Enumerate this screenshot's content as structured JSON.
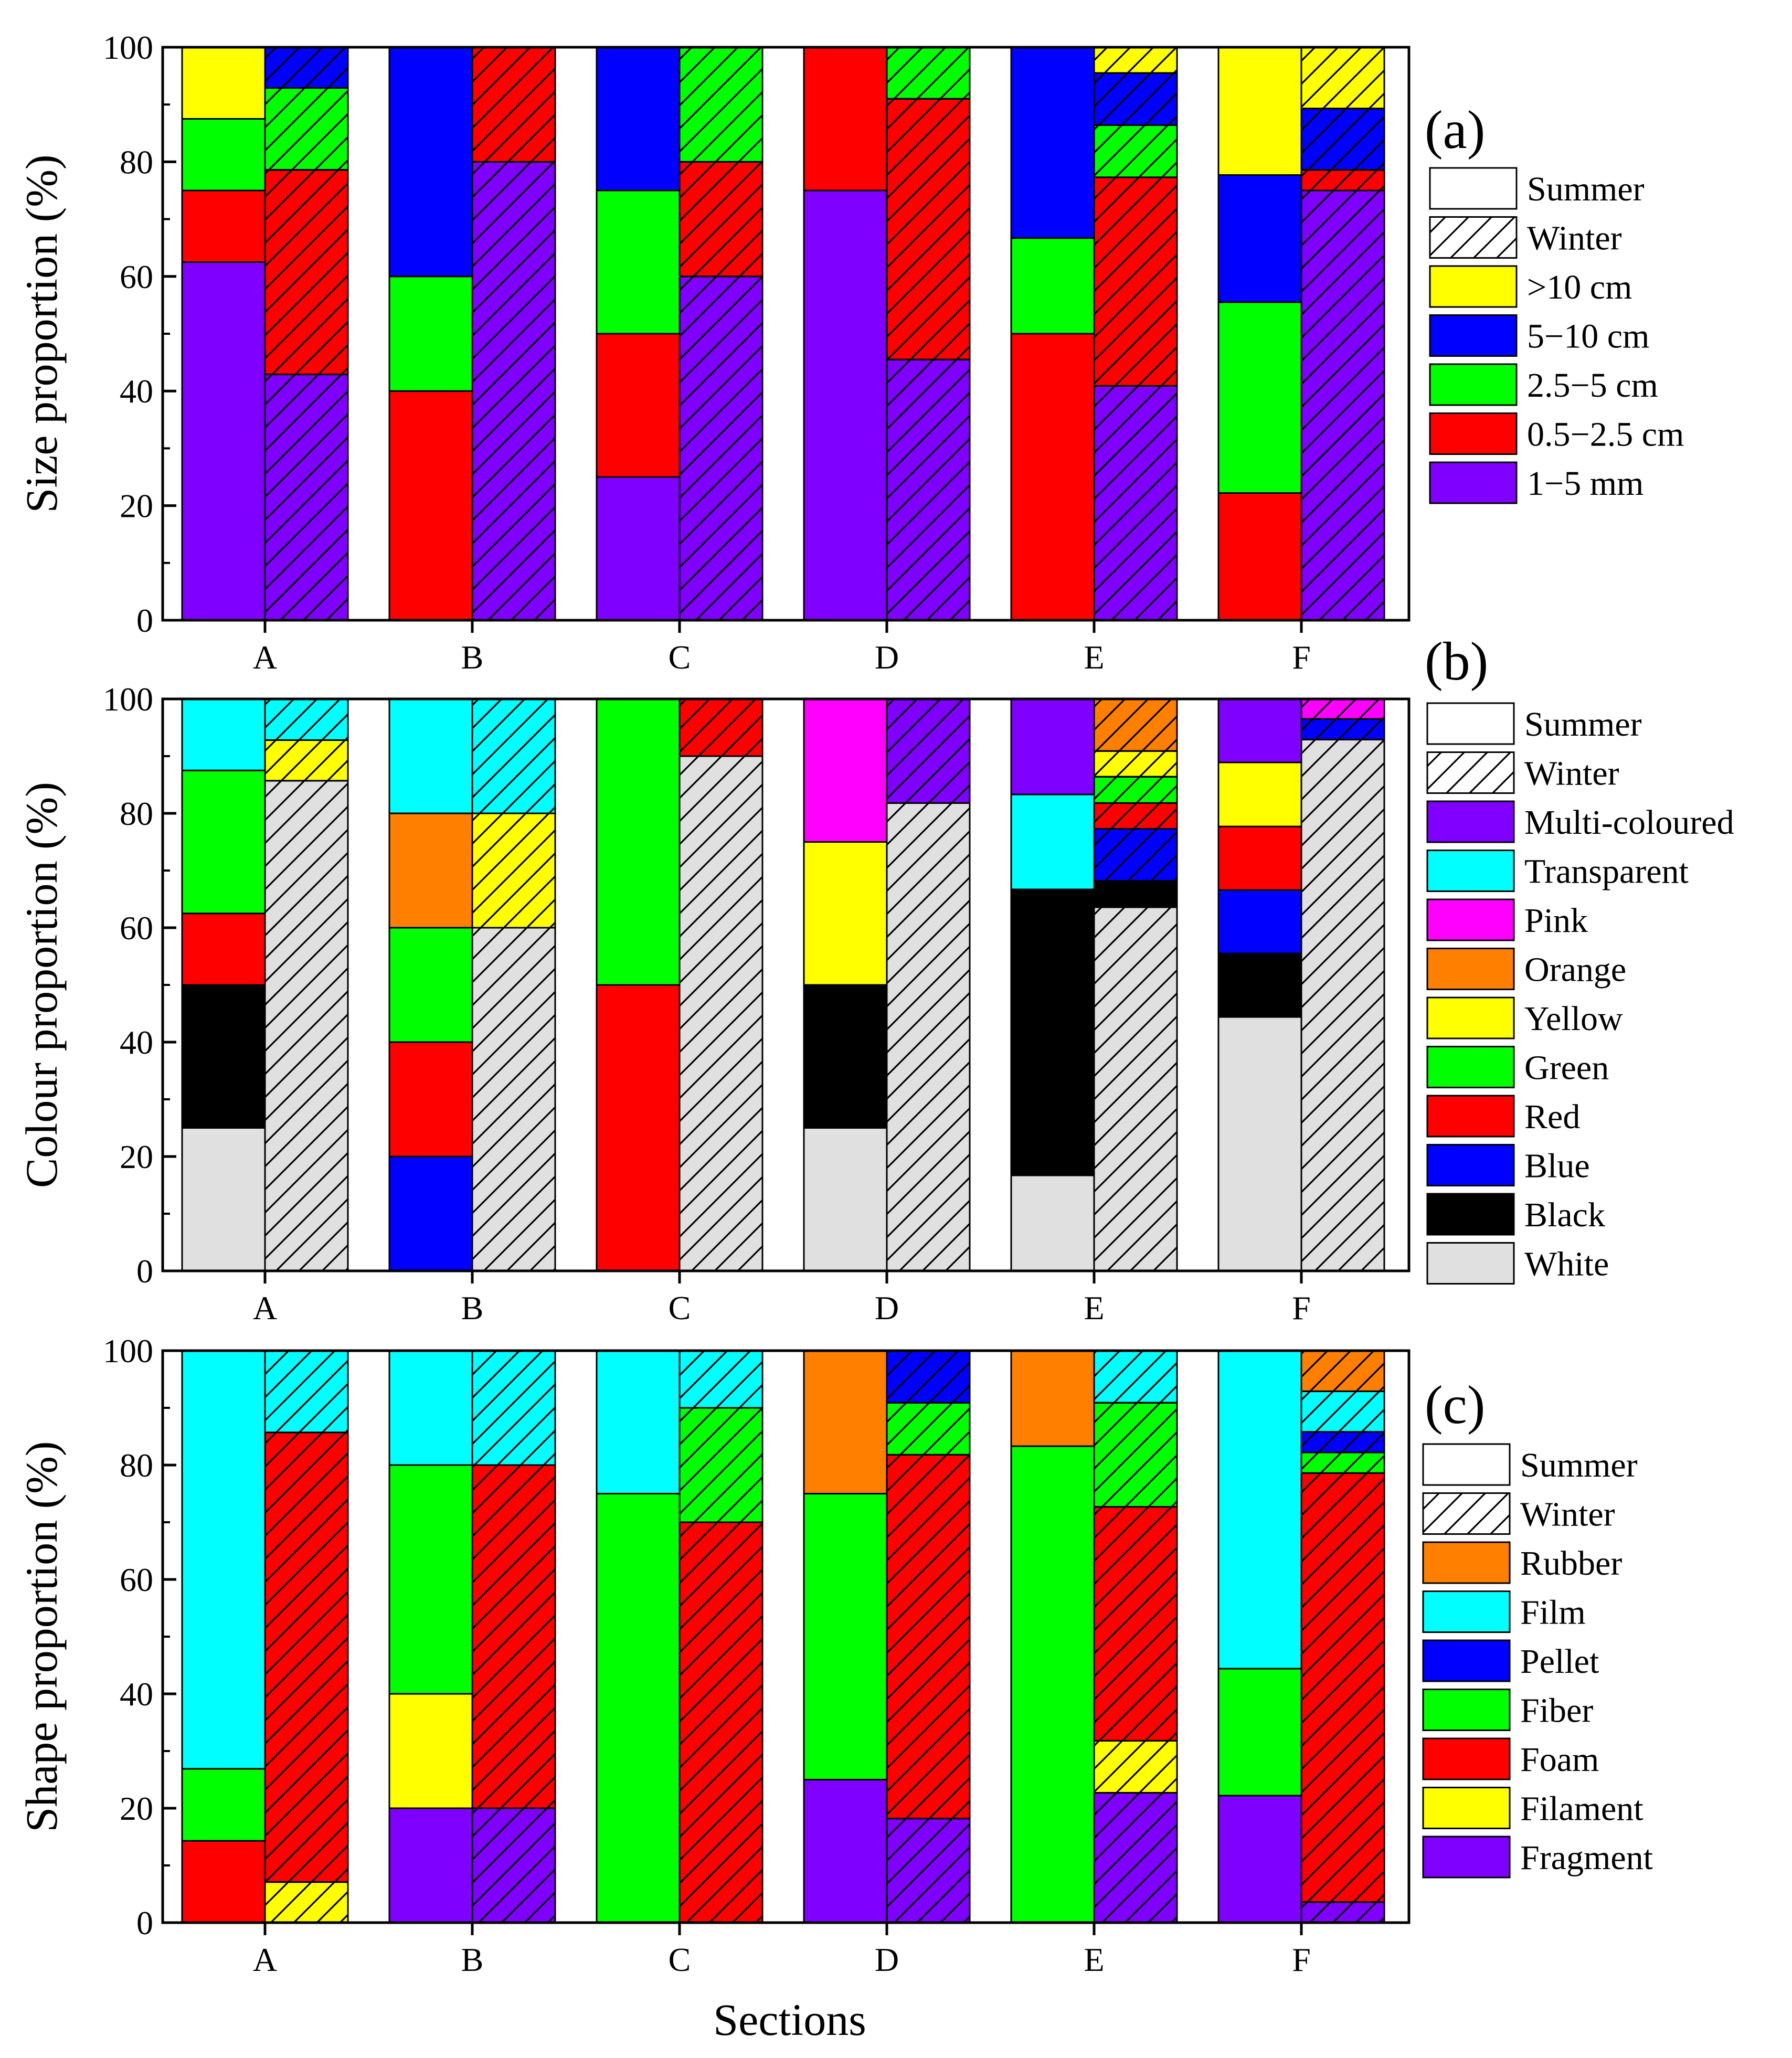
{
  "xlabel": "Sections",
  "seasons": [
    "Summer",
    "Winter"
  ],
  "chart_data": [
    {
      "type": "bar",
      "stacked": true,
      "panel": "(a)",
      "title": "",
      "xlabel": "Sections",
      "ylabel": "Size proportion (%)",
      "ylim": [
        0,
        100
      ],
      "yticks": [
        "0",
        "20",
        "40",
        "60",
        "80",
        "100"
      ],
      "categories": [
        "A",
        "B",
        "C",
        "D",
        "E",
        "F"
      ],
      "legend": {
        "pattern_items": [
          "Summer",
          "Winter"
        ],
        "items": [
          {
            "name": ">10 cm",
            "color": "#ffff00"
          },
          {
            "name": "5−10 cm",
            "color": "#0000ff"
          },
          {
            "name": "2.5−5 cm",
            "color": "#00ff00"
          },
          {
            "name": "0.5−2.5 cm",
            "color": "#ff0000"
          },
          {
            "name": "1−5 mm",
            "color": "#8000ff"
          }
        ]
      },
      "series": [
        {
          "season": "Summer",
          "section": "A",
          "segments": [
            {
              "name": "1−5 mm",
              "value": 62.5
            },
            {
              "name": "0.5−2.5 cm",
              "value": 12.5
            },
            {
              "name": "2.5−5 cm",
              "value": 12.5
            },
            {
              "name": ">10 cm",
              "value": 12.5
            }
          ]
        },
        {
          "season": "Winter",
          "section": "A",
          "segments": [
            {
              "name": "1−5 mm",
              "value": 42.9
            },
            {
              "name": "0.5−2.5 cm",
              "value": 35.7
            },
            {
              "name": "2.5−5 cm",
              "value": 14.3
            },
            {
              "name": "5−10 cm",
              "value": 7.1
            }
          ]
        },
        {
          "season": "Summer",
          "section": "B",
          "segments": [
            {
              "name": "0.5−2.5 cm",
              "value": 40
            },
            {
              "name": "2.5−5 cm",
              "value": 20
            },
            {
              "name": "5−10 cm",
              "value": 40
            }
          ]
        },
        {
          "season": "Winter",
          "section": "B",
          "segments": [
            {
              "name": "1−5 mm",
              "value": 80
            },
            {
              "name": "0.5−2.5 cm",
              "value": 20
            }
          ]
        },
        {
          "season": "Summer",
          "section": "C",
          "segments": [
            {
              "name": "1−5 mm",
              "value": 25
            },
            {
              "name": "0.5−2.5 cm",
              "value": 25
            },
            {
              "name": "2.5−5 cm",
              "value": 25
            },
            {
              "name": "5−10 cm",
              "value": 25
            }
          ]
        },
        {
          "season": "Winter",
          "section": "C",
          "segments": [
            {
              "name": "1−5 mm",
              "value": 60
            },
            {
              "name": "0.5−2.5 cm",
              "value": 20
            },
            {
              "name": "2.5−5 cm",
              "value": 20
            }
          ]
        },
        {
          "season": "Summer",
          "section": "D",
          "segments": [
            {
              "name": "1−5 mm",
              "value": 75
            },
            {
              "name": "0.5−2.5 cm",
              "value": 25
            }
          ]
        },
        {
          "season": "Winter",
          "section": "D",
          "segments": [
            {
              "name": "1−5 mm",
              "value": 45.5
            },
            {
              "name": "0.5−2.5 cm",
              "value": 45.5
            },
            {
              "name": "2.5−5 cm",
              "value": 9
            }
          ]
        },
        {
          "season": "Summer",
          "section": "E",
          "segments": [
            {
              "name": "0.5−2.5 cm",
              "value": 50
            },
            {
              "name": "2.5−5 cm",
              "value": 16.7
            },
            {
              "name": "5−10 cm",
              "value": 33.3
            }
          ]
        },
        {
          "season": "Winter",
          "section": "E",
          "segments": [
            {
              "name": "1−5 mm",
              "value": 40.9
            },
            {
              "name": "0.5−2.5 cm",
              "value": 36.4
            },
            {
              "name": "2.5−5 cm",
              "value": 9.1
            },
            {
              "name": "5−10 cm",
              "value": 9.1
            },
            {
              "name": ">10 cm",
              "value": 4.5
            }
          ]
        },
        {
          "season": "Summer",
          "section": "F",
          "segments": [
            {
              "name": "0.5−2.5 cm",
              "value": 22.2
            },
            {
              "name": "2.5−5 cm",
              "value": 33.3
            },
            {
              "name": "5−10 cm",
              "value": 22.2
            },
            {
              "name": ">10 cm",
              "value": 22.3
            }
          ]
        },
        {
          "season": "Winter",
          "section": "F",
          "segments": [
            {
              "name": "1−5 mm",
              "value": 75
            },
            {
              "name": "0.5−2.5 cm",
              "value": 3.6
            },
            {
              "name": "5−10 cm",
              "value": 10.7
            },
            {
              "name": ">10 cm",
              "value": 10.7
            }
          ]
        }
      ]
    },
    {
      "type": "bar",
      "stacked": true,
      "panel": "(b)",
      "title": "",
      "xlabel": "Sections",
      "ylabel": "Colour proportion (%)",
      "ylim": [
        0,
        100
      ],
      "yticks": [
        "0",
        "20",
        "40",
        "60",
        "80",
        "100"
      ],
      "categories": [
        "A",
        "B",
        "C",
        "D",
        "E",
        "F"
      ],
      "legend": {
        "pattern_items": [
          "Summer",
          "Winter"
        ],
        "items": [
          {
            "name": "Multi-coloured",
            "color": "#8000ff"
          },
          {
            "name": "Transparent",
            "color": "#00ffff"
          },
          {
            "name": "Pink",
            "color": "#ff00ff"
          },
          {
            "name": "Orange",
            "color": "#ff8000"
          },
          {
            "name": "Yellow",
            "color": "#ffff00"
          },
          {
            "name": "Green",
            "color": "#00ff00"
          },
          {
            "name": "Red",
            "color": "#ff0000"
          },
          {
            "name": "Blue",
            "color": "#0000ff"
          },
          {
            "name": "Black",
            "color": "#000000"
          },
          {
            "name": "White",
            "color": "#e0e0e0"
          }
        ]
      },
      "series": [
        {
          "season": "Summer",
          "section": "A",
          "segments": [
            {
              "name": "White",
              "value": 25
            },
            {
              "name": "Black",
              "value": 25
            },
            {
              "name": "Red",
              "value": 12.5
            },
            {
              "name": "Green",
              "value": 25
            },
            {
              "name": "Transparent",
              "value": 12.5
            }
          ]
        },
        {
          "season": "Winter",
          "section": "A",
          "segments": [
            {
              "name": "White",
              "value": 85.7
            },
            {
              "name": "Yellow",
              "value": 7.1
            },
            {
              "name": "Transparent",
              "value": 7.2
            }
          ]
        },
        {
          "season": "Summer",
          "section": "B",
          "segments": [
            {
              "name": "Blue",
              "value": 20
            },
            {
              "name": "Red",
              "value": 20
            },
            {
              "name": "Green",
              "value": 20
            },
            {
              "name": "Orange",
              "value": 20
            },
            {
              "name": "Transparent",
              "value": 20
            }
          ]
        },
        {
          "season": "Winter",
          "section": "B",
          "segments": [
            {
              "name": "White",
              "value": 60
            },
            {
              "name": "Yellow",
              "value": 20
            },
            {
              "name": "Transparent",
              "value": 20
            }
          ]
        },
        {
          "season": "Summer",
          "section": "C",
          "segments": [
            {
              "name": "Red",
              "value": 50
            },
            {
              "name": "Green",
              "value": 50
            }
          ]
        },
        {
          "season": "Winter",
          "section": "C",
          "segments": [
            {
              "name": "White",
              "value": 90
            },
            {
              "name": "Red",
              "value": 10
            }
          ]
        },
        {
          "season": "Summer",
          "section": "D",
          "segments": [
            {
              "name": "White",
              "value": 25
            },
            {
              "name": "Black",
              "value": 25
            },
            {
              "name": "Yellow",
              "value": 25
            },
            {
              "name": "Pink",
              "value": 25
            }
          ]
        },
        {
          "season": "Winter",
          "section": "D",
          "segments": [
            {
              "name": "White",
              "value": 81.8
            },
            {
              "name": "Multi-coloured",
              "value": 18.2
            }
          ]
        },
        {
          "season": "Summer",
          "section": "E",
          "segments": [
            {
              "name": "White",
              "value": 16.7
            },
            {
              "name": "Black",
              "value": 50
            },
            {
              "name": "Transparent",
              "value": 16.6
            },
            {
              "name": "Multi-coloured",
              "value": 16.7
            }
          ]
        },
        {
          "season": "Winter",
          "section": "E",
          "segments": [
            {
              "name": "White",
              "value": 63.6
            },
            {
              "name": "Black",
              "value": 4.6
            },
            {
              "name": "Blue",
              "value": 9.1
            },
            {
              "name": "Red",
              "value": 4.5
            },
            {
              "name": "Green",
              "value": 4.6
            },
            {
              "name": "Yellow",
              "value": 4.5
            },
            {
              "name": "Orange",
              "value": 9.1
            }
          ]
        },
        {
          "season": "Summer",
          "section": "F",
          "segments": [
            {
              "name": "White",
              "value": 44.4
            },
            {
              "name": "Black",
              "value": 11.1
            },
            {
              "name": "Blue",
              "value": 11.1
            },
            {
              "name": "Red",
              "value": 11.1
            },
            {
              "name": "Yellow",
              "value": 11.2
            },
            {
              "name": "Multi-coloured",
              "value": 11.1
            }
          ]
        },
        {
          "season": "Winter",
          "section": "F",
          "segments": [
            {
              "name": "White",
              "value": 92.9
            },
            {
              "name": "Blue",
              "value": 3.6
            },
            {
              "name": "Pink",
              "value": 3.5
            }
          ]
        }
      ]
    },
    {
      "type": "bar",
      "stacked": true,
      "panel": "(c)",
      "title": "",
      "xlabel": "Sections",
      "ylabel": "Shape proportion (%)",
      "ylim": [
        0,
        100
      ],
      "yticks": [
        "0",
        "20",
        "40",
        "60",
        "80",
        "100"
      ],
      "categories": [
        "A",
        "B",
        "C",
        "D",
        "E",
        "F"
      ],
      "legend": {
        "pattern_items": [
          "Summer",
          "Winter"
        ],
        "items": [
          {
            "name": "Rubber",
            "color": "#ff8000"
          },
          {
            "name": "Film",
            "color": "#00ffff"
          },
          {
            "name": "Pellet",
            "color": "#0000ff"
          },
          {
            "name": "Fiber",
            "color": "#00ff00"
          },
          {
            "name": "Foam",
            "color": "#ff0000"
          },
          {
            "name": "Filament",
            "color": "#ffff00"
          },
          {
            "name": "Fragment",
            "color": "#8000ff"
          }
        ]
      },
      "series": [
        {
          "season": "Summer",
          "section": "A",
          "segments": [
            {
              "name": "Foam",
              "value": 14.3
            },
            {
              "name": "Fiber",
              "value": 12.6
            },
            {
              "name": "Film",
              "value": 73.1
            }
          ]
        },
        {
          "season": "Winter",
          "section": "A",
          "segments": [
            {
              "name": "Filament",
              "value": 7.1
            },
            {
              "name": "Foam",
              "value": 78.6
            },
            {
              "name": "Film",
              "value": 14.3
            }
          ]
        },
        {
          "season": "Summer",
          "section": "B",
          "segments": [
            {
              "name": "Fragment",
              "value": 20
            },
            {
              "name": "Filament",
              "value": 20
            },
            {
              "name": "Fiber",
              "value": 40
            },
            {
              "name": "Film",
              "value": 20
            }
          ]
        },
        {
          "season": "Winter",
          "section": "B",
          "segments": [
            {
              "name": "Fragment",
              "value": 20
            },
            {
              "name": "Foam",
              "value": 60
            },
            {
              "name": "Film",
              "value": 20
            }
          ]
        },
        {
          "season": "Summer",
          "section": "C",
          "segments": [
            {
              "name": "Fiber",
              "value": 75
            },
            {
              "name": "Film",
              "value": 25
            }
          ]
        },
        {
          "season": "Winter",
          "section": "C",
          "segments": [
            {
              "name": "Foam",
              "value": 70
            },
            {
              "name": "Fiber",
              "value": 20
            },
            {
              "name": "Film",
              "value": 10
            }
          ]
        },
        {
          "season": "Summer",
          "section": "D",
          "segments": [
            {
              "name": "Fragment",
              "value": 25
            },
            {
              "name": "Fiber",
              "value": 50
            },
            {
              "name": "Rubber",
              "value": 25
            }
          ]
        },
        {
          "season": "Winter",
          "section": "D",
          "segments": [
            {
              "name": "Fragment",
              "value": 18.2
            },
            {
              "name": "Foam",
              "value": 63.6
            },
            {
              "name": "Fiber",
              "value": 9.1
            },
            {
              "name": "Pellet",
              "value": 9.1
            }
          ]
        },
        {
          "season": "Summer",
          "section": "E",
          "segments": [
            {
              "name": "Fiber",
              "value": 83.3
            },
            {
              "name": "Rubber",
              "value": 16.7
            }
          ]
        },
        {
          "season": "Winter",
          "section": "E",
          "segments": [
            {
              "name": "Fragment",
              "value": 22.7
            },
            {
              "name": "Filament",
              "value": 9.1
            },
            {
              "name": "Foam",
              "value": 40.9
            },
            {
              "name": "Fiber",
              "value": 18.2
            },
            {
              "name": "Film",
              "value": 9.1
            }
          ]
        },
        {
          "season": "Summer",
          "section": "F",
          "segments": [
            {
              "name": "Fragment",
              "value": 22.2
            },
            {
              "name": "Fiber",
              "value": 22.2
            },
            {
              "name": "Film",
              "value": 55.6
            }
          ]
        },
        {
          "season": "Winter",
          "section": "F",
          "segments": [
            {
              "name": "Fragment",
              "value": 3.6
            },
            {
              "name": "Foam",
              "value": 75
            },
            {
              "name": "Fiber",
              "value": 3.6
            },
            {
              "name": "Pellet",
              "value": 3.6
            },
            {
              "name": "Film",
              "value": 7.1
            },
            {
              "name": "Rubber",
              "value": 7.1
            }
          ]
        }
      ]
    }
  ]
}
